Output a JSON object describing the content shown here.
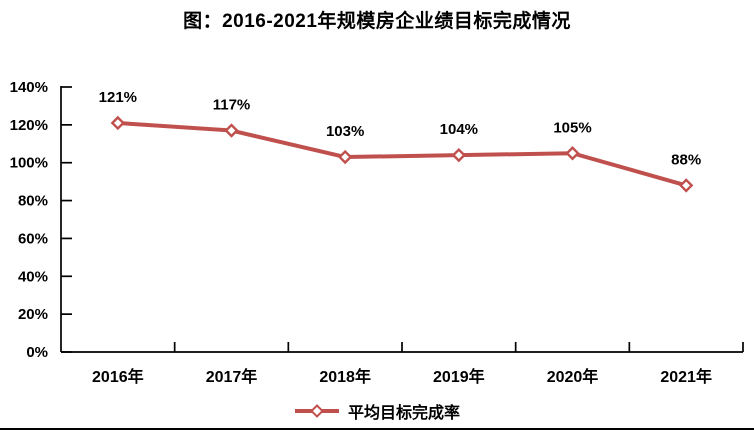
{
  "page": {
    "title": "图：2016-2021年规模房企业绩目标完成情况"
  },
  "chart_data": {
    "type": "line",
    "title": "图：2016-2021年规模房企业绩目标完成情况",
    "categories": [
      "2016年",
      "2017年",
      "2018年",
      "2019年",
      "2020年",
      "2021年"
    ],
    "series": [
      {
        "name": "平均目标完成率",
        "values": [
          121,
          117,
          103,
          104,
          105,
          88
        ]
      }
    ],
    "data_labels": [
      "121%",
      "117%",
      "103%",
      "104%",
      "105%",
      "88%"
    ],
    "xlabel": "",
    "ylabel": "",
    "ylim": [
      0,
      140
    ],
    "ytick_values": [
      0,
      20,
      40,
      60,
      80,
      100,
      120,
      140
    ],
    "ytick_labels": [
      "0%",
      "20%",
      "40%",
      "60%",
      "80%",
      "100%",
      "120%",
      "140%"
    ],
    "grid": false,
    "legend_position": "bottom",
    "line_color": "#c0504d",
    "marker": "diamond-open",
    "marker_fill": "#ffffff",
    "axis_color": "#000000",
    "label_color": "#000000"
  },
  "legend": {
    "label": "平均目标完成率"
  }
}
